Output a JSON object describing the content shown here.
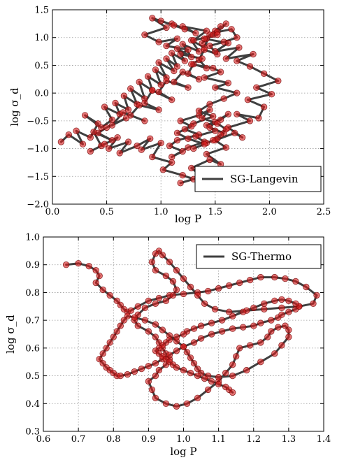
{
  "chart_data": [
    {
      "type": "line",
      "legend": [
        "SG-Langevin"
      ],
      "legend_position": "bottom-right",
      "grid": true,
      "xlabel": "log P",
      "ylabel": "log σ_d",
      "xlim": [
        0.0,
        2.5
      ],
      "ylim": [
        -2.0,
        1.5
      ],
      "xticks": [
        "0.0",
        "0.5",
        "1.0",
        "1.5",
        "2.0",
        "2.5"
      ],
      "yticks": [
        "−2.0",
        "−1.5",
        "−1.0",
        "−0.5",
        "0.0",
        "0.5",
        "1.0",
        "1.5"
      ],
      "series": [
        {
          "name": "SG-Langevin",
          "x": [
            0.08,
            0.15,
            0.28,
            0.22,
            0.35,
            0.42,
            0.3,
            0.45,
            0.55,
            0.48,
            0.62,
            0.58,
            0.7,
            0.66,
            0.78,
            0.72,
            0.85,
            0.8,
            0.92,
            0.88,
            1.0,
            0.95,
            1.05,
            0.98,
            1.12,
            1.05,
            1.15,
            1.1,
            1.22,
            1.15,
            1.28,
            1.2,
            1.35,
            1.28,
            1.4,
            1.45,
            1.38,
            1.5,
            1.42,
            1.55,
            1.48,
            1.6,
            1.52,
            1.65,
            1.7,
            1.58,
            1.45,
            1.52,
            1.4,
            1.35,
            1.42,
            1.3,
            1.25,
            1.35,
            1.2,
            1.12,
            1.25,
            1.05,
            0.98,
            1.1,
            0.92,
            0.85,
            0.98,
            0.8,
            0.72,
            0.85,
            0.65,
            0.55,
            0.68,
            0.5,
            0.42,
            0.55,
            0.38,
            0.45,
            0.35,
            0.48,
            0.6,
            0.52,
            0.7,
            0.62,
            0.78,
            0.9,
            0.82,
            1.0,
            0.92,
            1.1,
            1.02,
            1.2,
            1.3,
            1.18,
            1.38,
            1.28,
            1.45,
            1.55,
            1.42,
            1.6,
            1.5,
            1.68,
            1.75,
            1.62,
            1.82,
            1.7,
            1.9,
            1.95,
            1.8,
            2.02,
            1.88,
            2.08,
            1.95,
            1.82,
            1.7,
            1.85,
            1.6,
            1.72,
            1.5,
            1.62,
            1.4,
            1.52,
            1.3,
            1.42,
            1.2,
            1.32,
            1.1,
            1.22,
            1.0,
            1.12,
            0.92,
            1.05,
            0.85,
            0.98,
            1.15,
            1.05,
            1.25,
            1.18,
            1.38,
            1.28,
            1.48,
            1.55,
            1.4,
            1.62,
            1.5,
            1.7,
            1.58,
            1.45,
            1.35,
            1.48,
            1.3,
            1.22,
            1.35,
            1.15,
            1.08,
            1.2,
            1.1,
            1.25,
            1.4,
            1.32,
            1.5,
            1.42,
            1.55,
            1.62,
            1.5,
            1.45,
            1.58,
            1.52,
            1.42,
            1.3,
            1.4,
            1.25,
            1.15,
            1.28,
            1.18,
            1.35,
            1.45,
            1.38,
            1.52,
            1.6,
            1.55,
            1.48
          ],
          "y": [
            -0.88,
            -0.75,
            -0.92,
            -0.68,
            -0.8,
            -0.55,
            -0.4,
            -0.62,
            -0.48,
            -0.25,
            -0.38,
            -0.18,
            -0.3,
            -0.05,
            -0.2,
            0.08,
            -0.1,
            0.2,
            0.05,
            0.3,
            0.15,
            0.42,
            0.28,
            0.55,
            0.4,
            0.62,
            0.48,
            0.72,
            0.58,
            0.8,
            0.65,
            0.88,
            0.75,
            0.95,
            0.82,
            1.05,
            0.9,
            1.12,
            0.98,
            1.2,
            1.05,
            1.25,
            1.1,
            1.15,
            1.0,
            0.92,
            0.85,
            0.7,
            0.78,
            0.6,
            0.45,
            0.52,
            0.35,
            0.25,
            0.38,
            0.2,
            0.1,
            0.22,
            0.02,
            -0.12,
            0.05,
            -0.18,
            -0.3,
            -0.22,
            -0.4,
            -0.5,
            -0.35,
            -0.58,
            -0.45,
            -0.62,
            -0.72,
            -0.85,
            -0.7,
            -0.95,
            -1.05,
            -0.92,
            -0.8,
            -1.0,
            -0.88,
            -1.08,
            -0.95,
            -0.82,
            -1.02,
            -0.9,
            -1.15,
            -1.25,
            -1.38,
            -1.48,
            -1.55,
            -1.62,
            -1.5,
            -1.35,
            -1.2,
            -1.28,
            -1.1,
            -0.98,
            -0.85,
            -0.72,
            -0.8,
            -0.62,
            -0.5,
            -0.38,
            -0.45,
            -0.25,
            -0.12,
            -0.02,
            0.1,
            0.22,
            0.35,
            0.48,
            0.58,
            0.7,
            0.62,
            0.82,
            0.75,
            0.9,
            0.98,
            1.05,
            0.95,
            1.12,
            1.2,
            1.08,
            1.25,
            1.15,
            1.3,
            1.22,
            1.35,
            1.18,
            1.05,
            0.92,
            0.98,
            0.85,
            0.78,
            0.7,
            0.62,
            0.52,
            0.45,
            0.38,
            0.28,
            0.18,
            0.1,
            0.0,
            -0.1,
            -0.2,
            -0.32,
            -0.42,
            -0.55,
            -0.65,
            -0.75,
            -0.85,
            -0.95,
            -1.05,
            -1.15,
            -0.98,
            -0.88,
            -0.78,
            -0.68,
            -0.58,
            -0.48,
            -0.38,
            -0.52,
            -0.62,
            -0.72,
            -0.82,
            -0.9,
            -1.0,
            -0.92,
            -0.82,
            -0.72,
            -0.6,
            -0.5,
            -0.4,
            -0.3,
            -0.45,
            -0.55,
            -0.65,
            -0.75,
            -0.85
          ]
        }
      ]
    },
    {
      "type": "line",
      "legend": [
        "SG-Thermo"
      ],
      "legend_position": "top-right",
      "grid": true,
      "xlabel": "log P",
      "ylabel": "log σ_d",
      "xlim": [
        0.6,
        1.4
      ],
      "ylim": [
        0.3,
        1.0
      ],
      "xticks": [
        "0.6",
        "0.7",
        "0.8",
        "0.9",
        "1.0",
        "1.1",
        "1.2",
        "1.3",
        "1.4"
      ],
      "yticks": [
        "0.3",
        "0.4",
        "0.5",
        "0.6",
        "0.7",
        "0.8",
        "0.9",
        "1.0"
      ],
      "series": [
        {
          "name": "SG-Thermo",
          "x": [
            0.665,
            0.7,
            0.73,
            0.75,
            0.76,
            0.75,
            0.77,
            0.79,
            0.81,
            0.82,
            0.83,
            0.84,
            0.85,
            0.87,
            0.9,
            0.93,
            0.96,
            1.0,
            1.04,
            1.07,
            1.1,
            1.13,
            1.16,
            1.19,
            1.22,
            1.26,
            1.29,
            1.32,
            1.35,
            1.38,
            1.37,
            1.33,
            1.28,
            1.23,
            1.18,
            1.13,
            1.09,
            1.06,
            1.04,
            1.02,
            1.0,
            0.98,
            0.96,
            0.94,
            0.93,
            0.92,
            0.91,
            0.92,
            0.95,
            0.97,
            0.98,
            0.97,
            0.95,
            0.92,
            0.89,
            0.87,
            0.86,
            0.87,
            0.9,
            0.92,
            0.93,
            0.94,
            0.95,
            0.96,
            0.95,
            0.93,
            0.92,
            0.9,
            0.91,
            0.92,
            0.95,
            0.98,
            1.01,
            1.04,
            1.07,
            1.1,
            1.12,
            1.14,
            1.15,
            1.16,
            1.19,
            1.22,
            1.24,
            1.25,
            1.27,
            1.29,
            1.3,
            1.3,
            1.28,
            1.26,
            1.22,
            1.18,
            1.14,
            1.1,
            1.07,
            1.05,
            1.04,
            1.03,
            1.02,
            1.01,
            1.0,
            0.98,
            0.96,
            0.94,
            0.92,
            0.89,
            0.86,
            0.84,
            0.83,
            0.82,
            0.81,
            0.8,
            0.79,
            0.78,
            0.77,
            0.76,
            0.77,
            0.78,
            0.79,
            0.8,
            0.81,
            0.82,
            0.84,
            0.86,
            0.88,
            0.9,
            0.92,
            0.94,
            0.96,
            0.98,
            1.0,
            1.03,
            1.05,
            1.08,
            1.11,
            1.14,
            1.17,
            1.2,
            1.22,
            1.25,
            1.27,
            1.28,
            1.3,
            1.32,
            1.33,
            1.32,
            1.3,
            1.28,
            1.26,
            1.23,
            1.2,
            1.17,
            1.14,
            1.11,
            1.08,
            1.05,
            1.03,
            1.01,
            1.0,
            0.98,
            0.96,
            0.95,
            0.94,
            0.93,
            0.92,
            0.93,
            0.94,
            0.95,
            0.96,
            0.97,
            0.98,
            1.0,
            1.02,
            1.04,
            1.06,
            1.08,
            1.1,
            1.12,
            1.13,
            1.14
          ],
          "y": [
            0.9,
            0.905,
            0.895,
            0.88,
            0.86,
            0.835,
            0.81,
            0.79,
            0.77,
            0.755,
            0.74,
            0.73,
            0.735,
            0.75,
            0.77,
            0.78,
            0.79,
            0.795,
            0.8,
            0.805,
            0.815,
            0.825,
            0.835,
            0.845,
            0.855,
            0.855,
            0.85,
            0.84,
            0.82,
            0.79,
            0.76,
            0.75,
            0.745,
            0.74,
            0.735,
            0.73,
            0.74,
            0.76,
            0.79,
            0.82,
            0.85,
            0.88,
            0.91,
            0.935,
            0.95,
            0.94,
            0.91,
            0.88,
            0.86,
            0.84,
            0.81,
            0.79,
            0.77,
            0.76,
            0.745,
            0.72,
            0.7,
            0.68,
            0.66,
            0.64,
            0.62,
            0.6,
            0.58,
            0.56,
            0.54,
            0.52,
            0.5,
            0.48,
            0.45,
            0.42,
            0.4,
            0.39,
            0.4,
            0.42,
            0.45,
            0.48,
            0.51,
            0.54,
            0.57,
            0.6,
            0.61,
            0.62,
            0.64,
            0.66,
            0.675,
            0.68,
            0.665,
            0.64,
            0.61,
            0.58,
            0.55,
            0.52,
            0.5,
            0.495,
            0.5,
            0.51,
            0.525,
            0.545,
            0.565,
            0.585,
            0.605,
            0.625,
            0.645,
            0.665,
            0.685,
            0.7,
            0.71,
            0.715,
            0.7,
            0.68,
            0.66,
            0.64,
            0.62,
            0.6,
            0.58,
            0.56,
            0.545,
            0.53,
            0.52,
            0.51,
            0.5,
            0.5,
            0.505,
            0.515,
            0.525,
            0.535,
            0.545,
            0.56,
            0.575,
            0.59,
            0.605,
            0.62,
            0.635,
            0.65,
            0.66,
            0.67,
            0.675,
            0.68,
            0.69,
            0.7,
            0.71,
            0.72,
            0.73,
            0.74,
            0.75,
            0.76,
            0.77,
            0.775,
            0.77,
            0.76,
            0.745,
            0.73,
            0.715,
            0.7,
            0.69,
            0.68,
            0.67,
            0.66,
            0.65,
            0.64,
            0.63,
            0.62,
            0.61,
            0.6,
            0.59,
            0.58,
            0.57,
            0.56,
            0.55,
            0.54,
            0.53,
            0.52,
            0.51,
            0.5,
            0.49,
            0.48,
            0.47,
            0.46,
            0.45,
            0.44
          ]
        }
      ]
    }
  ]
}
